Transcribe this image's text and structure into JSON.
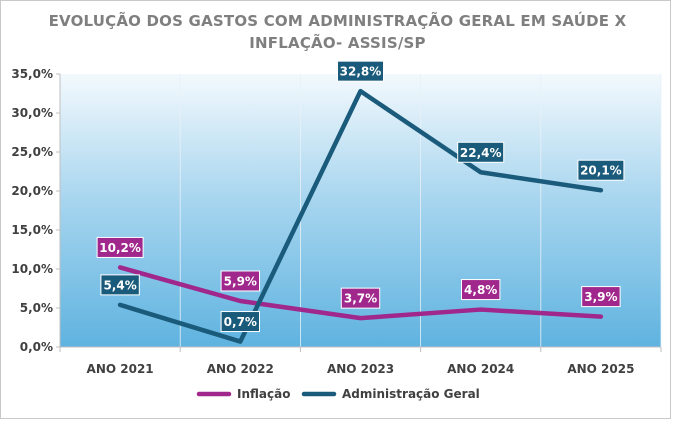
{
  "chart_data": {
    "type": "line",
    "title": [
      "EVOLUÇÃO DOS GASTOS COM ADMINISTRAÇÃO  GERAL EM SAÚDE X",
      "INFLAÇÃO- ASSIS/SP"
    ],
    "categories": [
      "ANO 2021",
      "ANO 2022",
      "ANO 2023",
      "ANO 2024",
      "ANO 2025"
    ],
    "series": [
      {
        "name": "Inflação",
        "values": [
          10.2,
          5.9,
          3.7,
          4.8,
          3.9
        ],
        "labels": [
          "10,2%",
          "5,9%",
          "3,7%",
          "4,8%",
          "3,9%"
        ],
        "color": "#a0288c"
      },
      {
        "name": "Administração Geral",
        "values": [
          5.4,
          0.7,
          32.8,
          22.4,
          20.1
        ],
        "labels": [
          "5,4%",
          "0,7%",
          "32,8%",
          "22,4%",
          "20,1%"
        ],
        "color": "#1a5a7a"
      }
    ],
    "ylim": [
      0,
      35
    ],
    "yticks": [
      0,
      5,
      10,
      15,
      20,
      25,
      30,
      35
    ],
    "ytick_labels": [
      "0,0%",
      "5,0%",
      "10,0%",
      "15,0%",
      "20,0%",
      "25,0%",
      "30,0%",
      "35,0%"
    ],
    "plot_background": "light-blue-gradient",
    "grid": "vertical-category-lines",
    "legend_position": "bottom"
  }
}
